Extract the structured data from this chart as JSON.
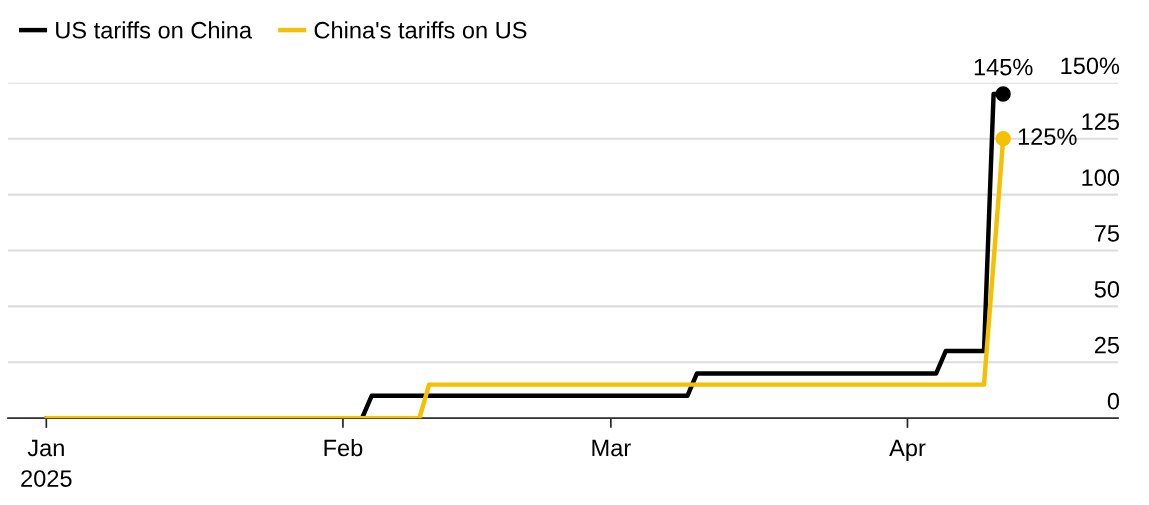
{
  "chart_data": {
    "type": "line",
    "series": [
      {
        "name": "US tariffs on China",
        "color": "#000000",
        "x": [
          "2025-01-01",
          "2025-02-03",
          "2025-02-04",
          "2025-03-09",
          "2025-03-10",
          "2025-04-04",
          "2025-04-05",
          "2025-04-09",
          "2025-04-10",
          "2025-04-11"
        ],
        "values": [
          0,
          0,
          10,
          10,
          20,
          20,
          30,
          30,
          145,
          145
        ]
      },
      {
        "name": "China's tariffs on US",
        "color": "#f5c000",
        "x": [
          "2025-01-01",
          "2025-02-09",
          "2025-02-10",
          "2025-04-09",
          "2025-04-11"
        ],
        "values": [
          0,
          0,
          15,
          15,
          125
        ]
      }
    ],
    "xlim": [
      "2024-12-28",
      "2025-04-23"
    ],
    "xticks": [
      {
        "value": "2025-01-01",
        "label": "Jan\n2025"
      },
      {
        "value": "2025-02-01",
        "label": "Feb"
      },
      {
        "value": "2025-03-01",
        "label": "Mar"
      },
      {
        "value": "2025-04-01",
        "label": "Apr"
      }
    ],
    "ylim": [
      0,
      150
    ],
    "yticks": [
      0,
      25,
      50,
      75,
      100,
      125,
      {
        "value": 150,
        "label": "150%"
      }
    ],
    "annotations": [
      {
        "text": "145%",
        "x": "2025-04-11",
        "y": 145
      },
      {
        "text": "125%",
        "x": "2025-04-11",
        "y": 125
      }
    ],
    "grid": "y",
    "legend": "top left",
    "line_style": "solid"
  }
}
